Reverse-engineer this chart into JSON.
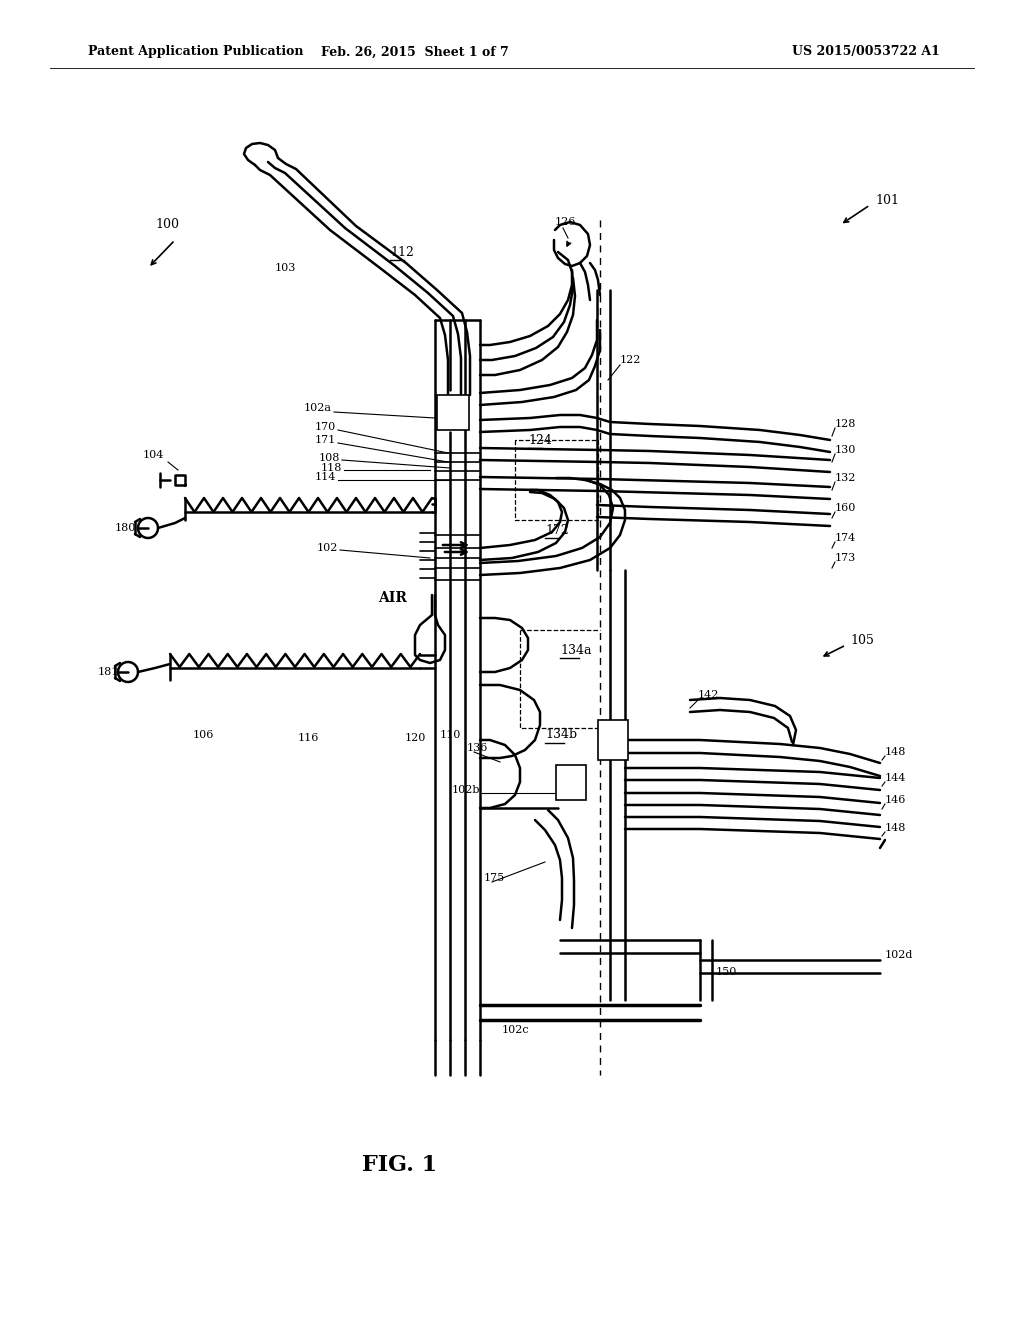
{
  "bg_color": "#ffffff",
  "header_left": "Patent Application Publication",
  "header_center": "Feb. 26, 2015  Sheet 1 of 7",
  "header_right": "US 2015/0053722 A1",
  "figure_label": "FIG. 1"
}
